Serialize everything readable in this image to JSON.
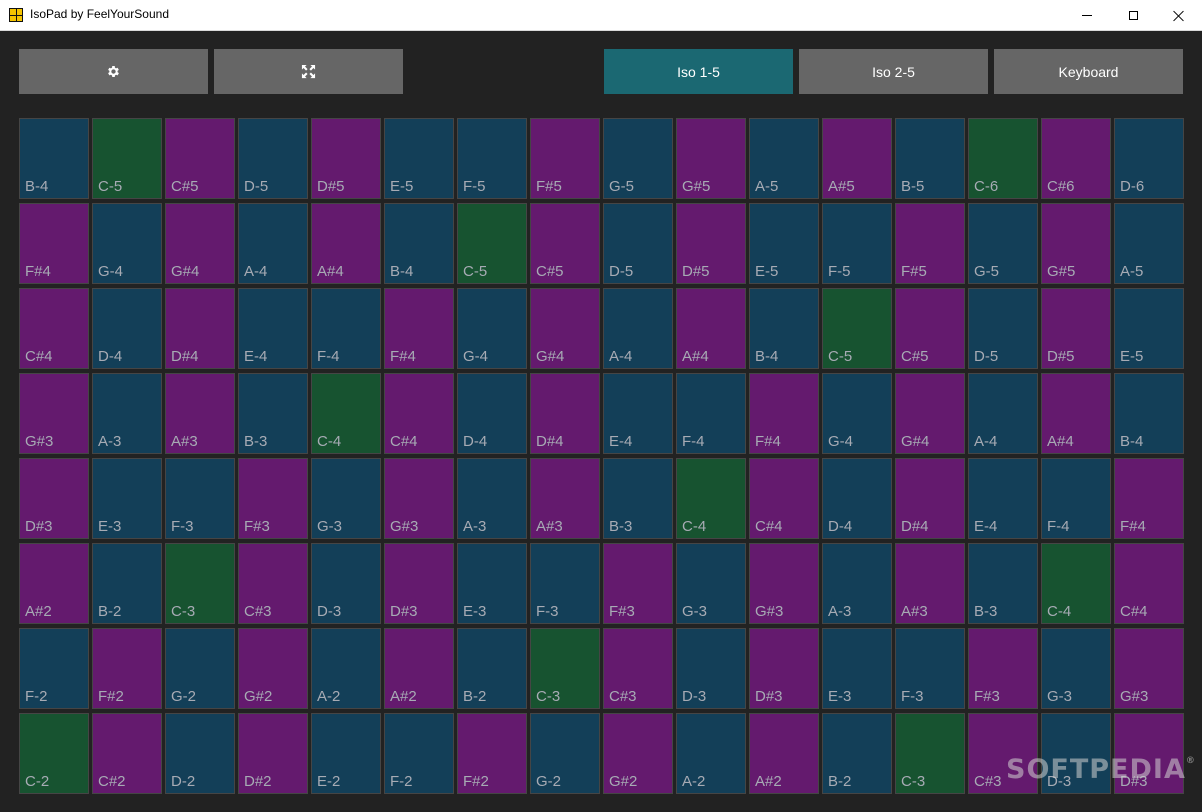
{
  "window": {
    "title": "IsoPad by FeelYourSound",
    "controls": [
      "minimize",
      "maximize",
      "close"
    ]
  },
  "toolbar": {
    "settings_icon": "gear-icon",
    "fullscreen_icon": "expand-icon",
    "modes": [
      {
        "label": "Iso 1-5",
        "active": true
      },
      {
        "label": "Iso 2-5",
        "active": false
      },
      {
        "label": "Keyboard",
        "active": false
      }
    ]
  },
  "colors": {
    "background": "#222222",
    "button": "#666666",
    "active_button": "#1b6872",
    "natural_pad": "#133f58",
    "sharp_pad": "#641a6e",
    "c_pad": "#175330",
    "pad_label": "#a7abb4"
  },
  "pad_rows": [
    [
      "B-4",
      "C-5",
      "C#5",
      "D-5",
      "D#5",
      "E-5",
      "F-5",
      "F#5",
      "G-5",
      "G#5",
      "A-5",
      "A#5",
      "B-5",
      "C-6",
      "C#6",
      "D-6"
    ],
    [
      "F#4",
      "G-4",
      "G#4",
      "A-4",
      "A#4",
      "B-4",
      "C-5",
      "C#5",
      "D-5",
      "D#5",
      "E-5",
      "F-5",
      "F#5",
      "G-5",
      "G#5",
      "A-5"
    ],
    [
      "C#4",
      "D-4",
      "D#4",
      "E-4",
      "F-4",
      "F#4",
      "G-4",
      "G#4",
      "A-4",
      "A#4",
      "B-4",
      "C-5",
      "C#5",
      "D-5",
      "D#5",
      "E-5"
    ],
    [
      "G#3",
      "A-3",
      "A#3",
      "B-3",
      "C-4",
      "C#4",
      "D-4",
      "D#4",
      "E-4",
      "F-4",
      "F#4",
      "G-4",
      "G#4",
      "A-4",
      "A#4",
      "B-4"
    ],
    [
      "D#3",
      "E-3",
      "F-3",
      "F#3",
      "G-3",
      "G#3",
      "A-3",
      "A#3",
      "B-3",
      "C-4",
      "C#4",
      "D-4",
      "D#4",
      "E-4",
      "F-4",
      "F#4"
    ],
    [
      "A#2",
      "B-2",
      "C-3",
      "C#3",
      "D-3",
      "D#3",
      "E-3",
      "F-3",
      "F#3",
      "G-3",
      "G#3",
      "A-3",
      "A#3",
      "B-3",
      "C-4",
      "C#4"
    ],
    [
      "F-2",
      "F#2",
      "G-2",
      "G#2",
      "A-2",
      "A#2",
      "B-2",
      "C-3",
      "C#3",
      "D-3",
      "D#3",
      "E-3",
      "F-3",
      "F#3",
      "G-3",
      "G#3"
    ],
    [
      "C-2",
      "C#2",
      "D-2",
      "D#2",
      "E-2",
      "F-2",
      "F#2",
      "G-2",
      "G#2",
      "A-2",
      "A#2",
      "B-2",
      "C-3",
      "C#3",
      "D-3",
      "D#3"
    ]
  ],
  "watermark": {
    "text": "SOFTPEDIA",
    "mark": "®"
  }
}
